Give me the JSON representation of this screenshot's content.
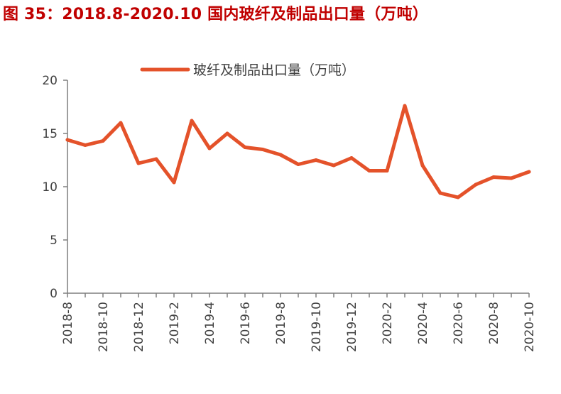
{
  "figure": {
    "title": "图 35：2018.8-2020.10 国内玻纤及制品出口量（万吨）"
  },
  "chart_data": {
    "type": "line",
    "title": "图 35：2018.8-2020.10 国内玻纤及制品出口量（万吨）",
    "xlabel": "",
    "ylabel": "",
    "ylim": [
      0,
      20
    ],
    "yticks": [
      "0",
      "5",
      "10",
      "15",
      "20"
    ],
    "grid": false,
    "legend_position": "top-center",
    "line_color": "#E4522A",
    "x": [
      "2018-8",
      "2018-9",
      "2018-10",
      "2018-11",
      "2018-12",
      "2019-1",
      "2019-2",
      "2019-3",
      "2019-4",
      "2019-5",
      "2019-6",
      "2019-7",
      "2019-8",
      "2019-9",
      "2019-10",
      "2019-11",
      "2019-12",
      "2020-1",
      "2020-2",
      "2020-3",
      "2020-4",
      "2020-5",
      "2020-6",
      "2020-7",
      "2020-8",
      "2020-9",
      "2020-10"
    ],
    "xtick_labels": [
      "2018-8",
      "2018-10",
      "2018-12",
      "2019-2",
      "2019-4",
      "2019-6",
      "2019-8",
      "2019-10",
      "2019-12",
      "2020-2",
      "2020-4",
      "2020-6",
      "2020-8",
      "2020-10"
    ],
    "series": [
      {
        "name": "玻纤及制品出口量（万吨）",
        "values": [
          14.4,
          13.9,
          14.3,
          16.0,
          12.2,
          12.6,
          10.4,
          16.2,
          13.6,
          15.0,
          13.7,
          13.5,
          13.0,
          12.1,
          12.5,
          12.0,
          12.7,
          11.5,
          11.5,
          17.6,
          12.0,
          9.4,
          9.0,
          10.2,
          10.9,
          10.8,
          11.4
        ]
      }
    ]
  }
}
